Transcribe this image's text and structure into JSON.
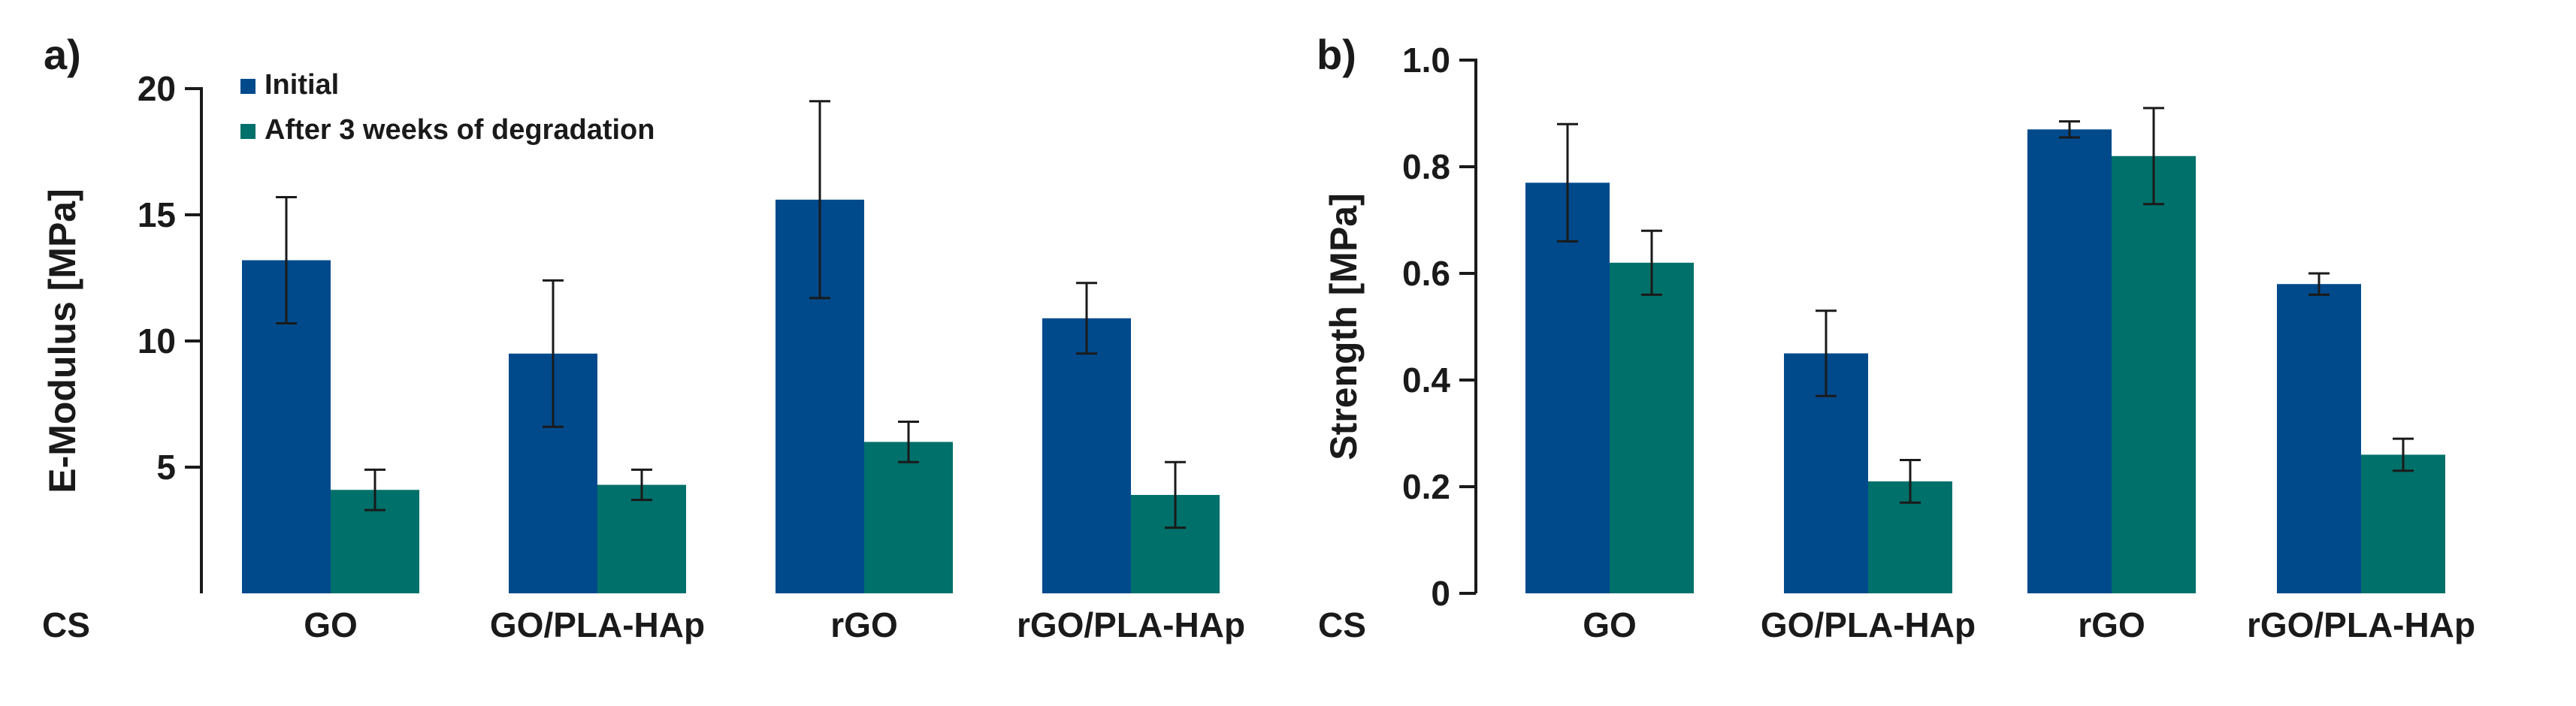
{
  "chart_data": [
    {
      "type": "bar",
      "panel_label": "a)",
      "title": "",
      "xlabel": "",
      "ylabel": "E-Modulus [MPa]",
      "ylim": [
        0,
        20
      ],
      "yticks": [
        5,
        10,
        15,
        20
      ],
      "control_label": "CS",
      "categories": [
        "GO",
        "GO/PLA-HAp",
        "rGO",
        "rGO/PLA-HAp"
      ],
      "legend": "top-left",
      "series": [
        {
          "name": "Initial",
          "color": "#004a8c",
          "values": [
            13.2,
            9.5,
            15.6,
            10.9
          ],
          "errors": [
            2.5,
            2.9,
            3.9,
            1.4
          ]
        },
        {
          "name": "After 3 weeks of degradation",
          "color": "#00706a",
          "values": [
            4.1,
            4.3,
            6.0,
            3.9
          ],
          "errors": [
            0.8,
            0.6,
            0.8,
            1.3
          ]
        }
      ]
    },
    {
      "type": "bar",
      "panel_label": "b)",
      "title": "",
      "xlabel": "",
      "ylabel": "Strength [MPa]",
      "ylim": [
        0,
        1.0
      ],
      "yticks": [
        "0",
        "0.2",
        "0.4",
        "0.6",
        "0.8",
        "1.0"
      ],
      "control_label": "CS",
      "categories": [
        "GO",
        "GO/PLA-HAp",
        "rGO",
        "rGO/PLA-HAp"
      ],
      "series": [
        {
          "name": "Initial",
          "color": "#004a8c",
          "values": [
            0.77,
            0.45,
            0.87,
            0.58
          ],
          "errors": [
            0.11,
            0.08,
            0.015,
            0.02
          ]
        },
        {
          "name": "After 3 weeks of degradation",
          "color": "#00706a",
          "values": [
            0.62,
            0.21,
            0.82,
            0.26
          ],
          "errors": [
            0.06,
            0.04,
            0.09,
            0.03
          ]
        }
      ]
    }
  ]
}
